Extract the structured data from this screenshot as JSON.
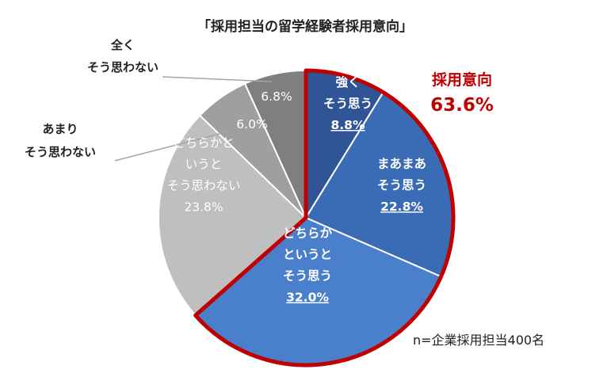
{
  "chart_data": {
    "type": "pie",
    "title": "「採用担当の留学経験者採用意向」",
    "start": "top",
    "direction": "clockwise",
    "slices": [
      {
        "label": "強く\nそう思う",
        "value": 8.8,
        "value_label": "8.8%",
        "color": "#2f5597",
        "label_color": "#ffffff"
      },
      {
        "label": "まあまあ\nそう思う",
        "value": 22.8,
        "value_label": "22.8%",
        "color": "#3a6cb5",
        "label_color": "#ffffff"
      },
      {
        "label": "どちらか\nというと\nそう思う",
        "value": 32.0,
        "value_label": "32.0%",
        "color": "#4a7fcb",
        "label_color": "#ffffff"
      },
      {
        "label": "どちらかと\nいうと\nそう思わない",
        "value": 23.8,
        "value_label": "23.8%",
        "color": "#bfbfbf",
        "label_color": "#ffffff"
      },
      {
        "label": "あまり\nそう思わない",
        "value": 6.0,
        "value_label": "6.0%",
        "color": "#9f9f9f",
        "label_color": "#ffffff"
      },
      {
        "label": "全く\nそう思わない",
        "value": 6.8,
        "value_label": "6.8%",
        "color": "#7f7f7f",
        "label_color": "#ffffff"
      }
    ],
    "highlight": {
      "label": "採用意向",
      "value": 63.6,
      "value_label": "63.6%",
      "color": "#c00000",
      "slices": [
        0,
        1,
        2
      ]
    },
    "note": "n=企業採用担当400名"
  }
}
